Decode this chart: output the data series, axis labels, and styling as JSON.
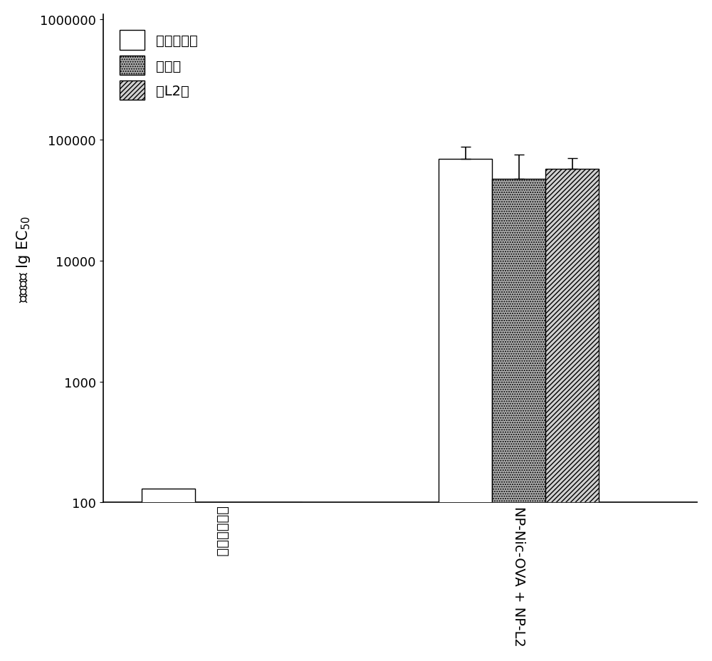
{
  "groups": [
    "未免疫的小鼠",
    "NP-Nic-OVA + NP-L2"
  ],
  "series": [
    {
      "label": "抗卯白蛋白",
      "values": [
        130,
        70000
      ],
      "errors": [
        0,
        18000
      ],
      "facecolor": "white",
      "edgecolor": "black",
      "hatch": ""
    },
    {
      "label": "抗烟碌",
      "values": [
        100,
        48000
      ],
      "errors": [
        0,
        28000
      ],
      "facecolor": "#b0b0b0",
      "edgecolor": "black",
      "hatch": "....."
    },
    {
      "label": "抗L2肽",
      "values": [
        100,
        58000
      ],
      "errors": [
        0,
        13000
      ],
      "facecolor": "#d0d0d0",
      "edgecolor": "black",
      "hatch": "/////"
    }
  ],
  "ylabel": "抗体滴度 lg EC₅₀",
  "ylim_low": 100,
  "ylim_high": 1100000,
  "yticks": [
    100,
    1000,
    10000,
    100000,
    1000000
  ],
  "ytick_labels": [
    "100",
    "1000",
    "10000",
    "100000",
    "1000000"
  ],
  "bar_width": 0.18,
  "group_centers": [
    0.3,
    1.3
  ],
  "xlim": [
    -0.1,
    1.9
  ],
  "background_color": "white",
  "figsize": [
    10.0,
    9.29
  ],
  "dpi": 100,
  "fontsize_legend": 14,
  "fontsize_ylabel": 15,
  "fontsize_ticks": 13,
  "fontsize_xticks": 14
}
